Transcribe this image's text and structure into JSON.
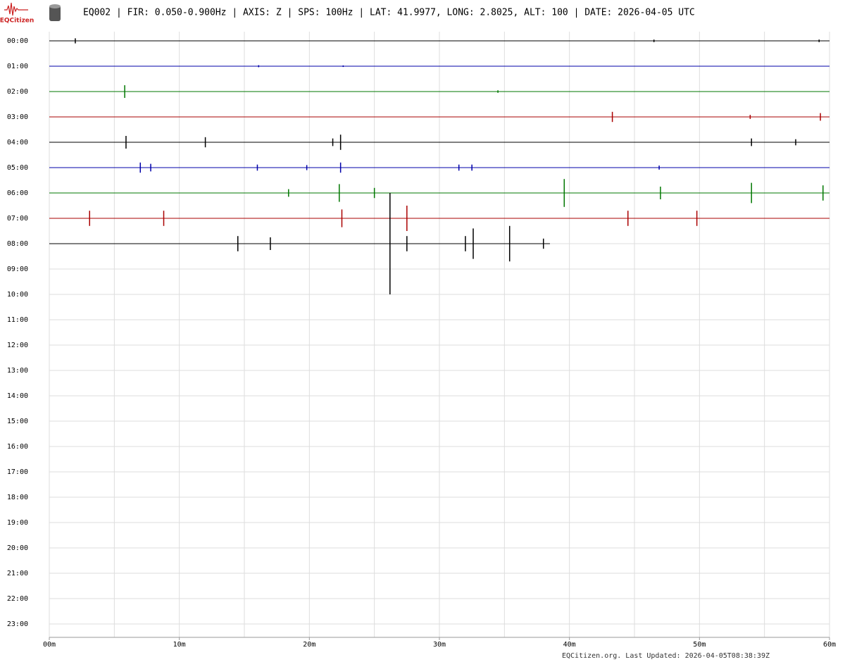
{
  "chart_data": {
    "type": "helicorder",
    "title": "EQ002 | FIR: 0.050-0.900Hz | AXIS: Z | SPS: 100Hz | LAT: 41.9977, LONG: 2.8025, ALT: 100 | DATE: 2026-04-05 UTC",
    "logo": "EQCitizen",
    "footer": "EQCitizen.org. Last Updated: 2026-04-05T08:38:39Z",
    "categories": [
      "00:00",
      "01:00",
      "02:00",
      "03:00",
      "04:00",
      "05:00",
      "06:00",
      "07:00",
      "08:00",
      "09:00",
      "10:00",
      "11:00",
      "12:00",
      "13:00",
      "14:00",
      "15:00",
      "16:00",
      "17:00",
      "18:00",
      "19:00",
      "20:00",
      "21:00",
      "22:00",
      "23:00"
    ],
    "xlim": [
      0,
      60
    ],
    "xticks": [
      {
        "value": 0,
        "label": "00m"
      },
      {
        "value": 10,
        "label": "10m"
      },
      {
        "value": 20,
        "label": "20m"
      },
      {
        "value": 30,
        "label": "30m"
      },
      {
        "value": 40,
        "label": "40m"
      },
      {
        "value": 50,
        "label": "50m"
      },
      {
        "value": 60,
        "label": "60m"
      }
    ],
    "xgrid": [
      0,
      5,
      10,
      15,
      20,
      25,
      30,
      35,
      40,
      45,
      50,
      55,
      60
    ],
    "grid": true,
    "traces": [
      {
        "color": "#000000",
        "end": 60,
        "spikes": [
          [
            2.0,
            0.1
          ],
          [
            46.5,
            0.05
          ],
          [
            59.2,
            0.05
          ]
        ]
      },
      {
        "color": "#0000aa",
        "end": 60,
        "spikes": [
          [
            16.1,
            0.04
          ],
          [
            22.6,
            0.03
          ]
        ]
      },
      {
        "color": "#007700",
        "end": 60,
        "spikes": [
          [
            5.8,
            0.25
          ],
          [
            34.5,
            0.05
          ]
        ]
      },
      {
        "color": "#aa0000",
        "end": 60,
        "spikes": [
          [
            43.3,
            0.2
          ],
          [
            53.9,
            0.08
          ],
          [
            59.3,
            0.15
          ]
        ]
      },
      {
        "color": "#000000",
        "end": 60,
        "spikes": [
          [
            5.9,
            0.25
          ],
          [
            12.0,
            0.2
          ],
          [
            21.8,
            0.15
          ],
          [
            22.4,
            0.3
          ],
          [
            54.0,
            0.15
          ],
          [
            57.4,
            0.12
          ]
        ]
      },
      {
        "color": "#0000aa",
        "end": 60,
        "spikes": [
          [
            7.0,
            0.2
          ],
          [
            7.8,
            0.15
          ],
          [
            16.0,
            0.12
          ],
          [
            19.8,
            0.1
          ],
          [
            22.4,
            0.2
          ],
          [
            31.5,
            0.12
          ],
          [
            32.5,
            0.12
          ],
          [
            46.9,
            0.08
          ]
        ]
      },
      {
        "color": "#007700",
        "end": 60,
        "spikes": [
          [
            18.4,
            0.15
          ],
          [
            22.3,
            0.35
          ],
          [
            25.0,
            0.2
          ],
          [
            39.6,
            0.55
          ],
          [
            47.0,
            0.25
          ],
          [
            54.0,
            0.4
          ],
          [
            59.5,
            0.3
          ]
        ]
      },
      {
        "color": "#aa0000",
        "end": 60,
        "spikes": [
          [
            3.1,
            0.3
          ],
          [
            8.8,
            0.3
          ],
          [
            22.5,
            0.35
          ],
          [
            27.5,
            0.5
          ],
          [
            44.5,
            0.3
          ],
          [
            49.8,
            0.3
          ]
        ]
      },
      {
        "color": "#000000",
        "end": 38.5,
        "spikes": [
          [
            14.5,
            0.3
          ],
          [
            17.0,
            0.25
          ],
          [
            26.2,
            2.0
          ],
          [
            27.5,
            0.3
          ],
          [
            32.0,
            0.3
          ],
          [
            32.6,
            0.6
          ],
          [
            35.4,
            0.7
          ],
          [
            38.0,
            0.2
          ]
        ]
      }
    ]
  }
}
